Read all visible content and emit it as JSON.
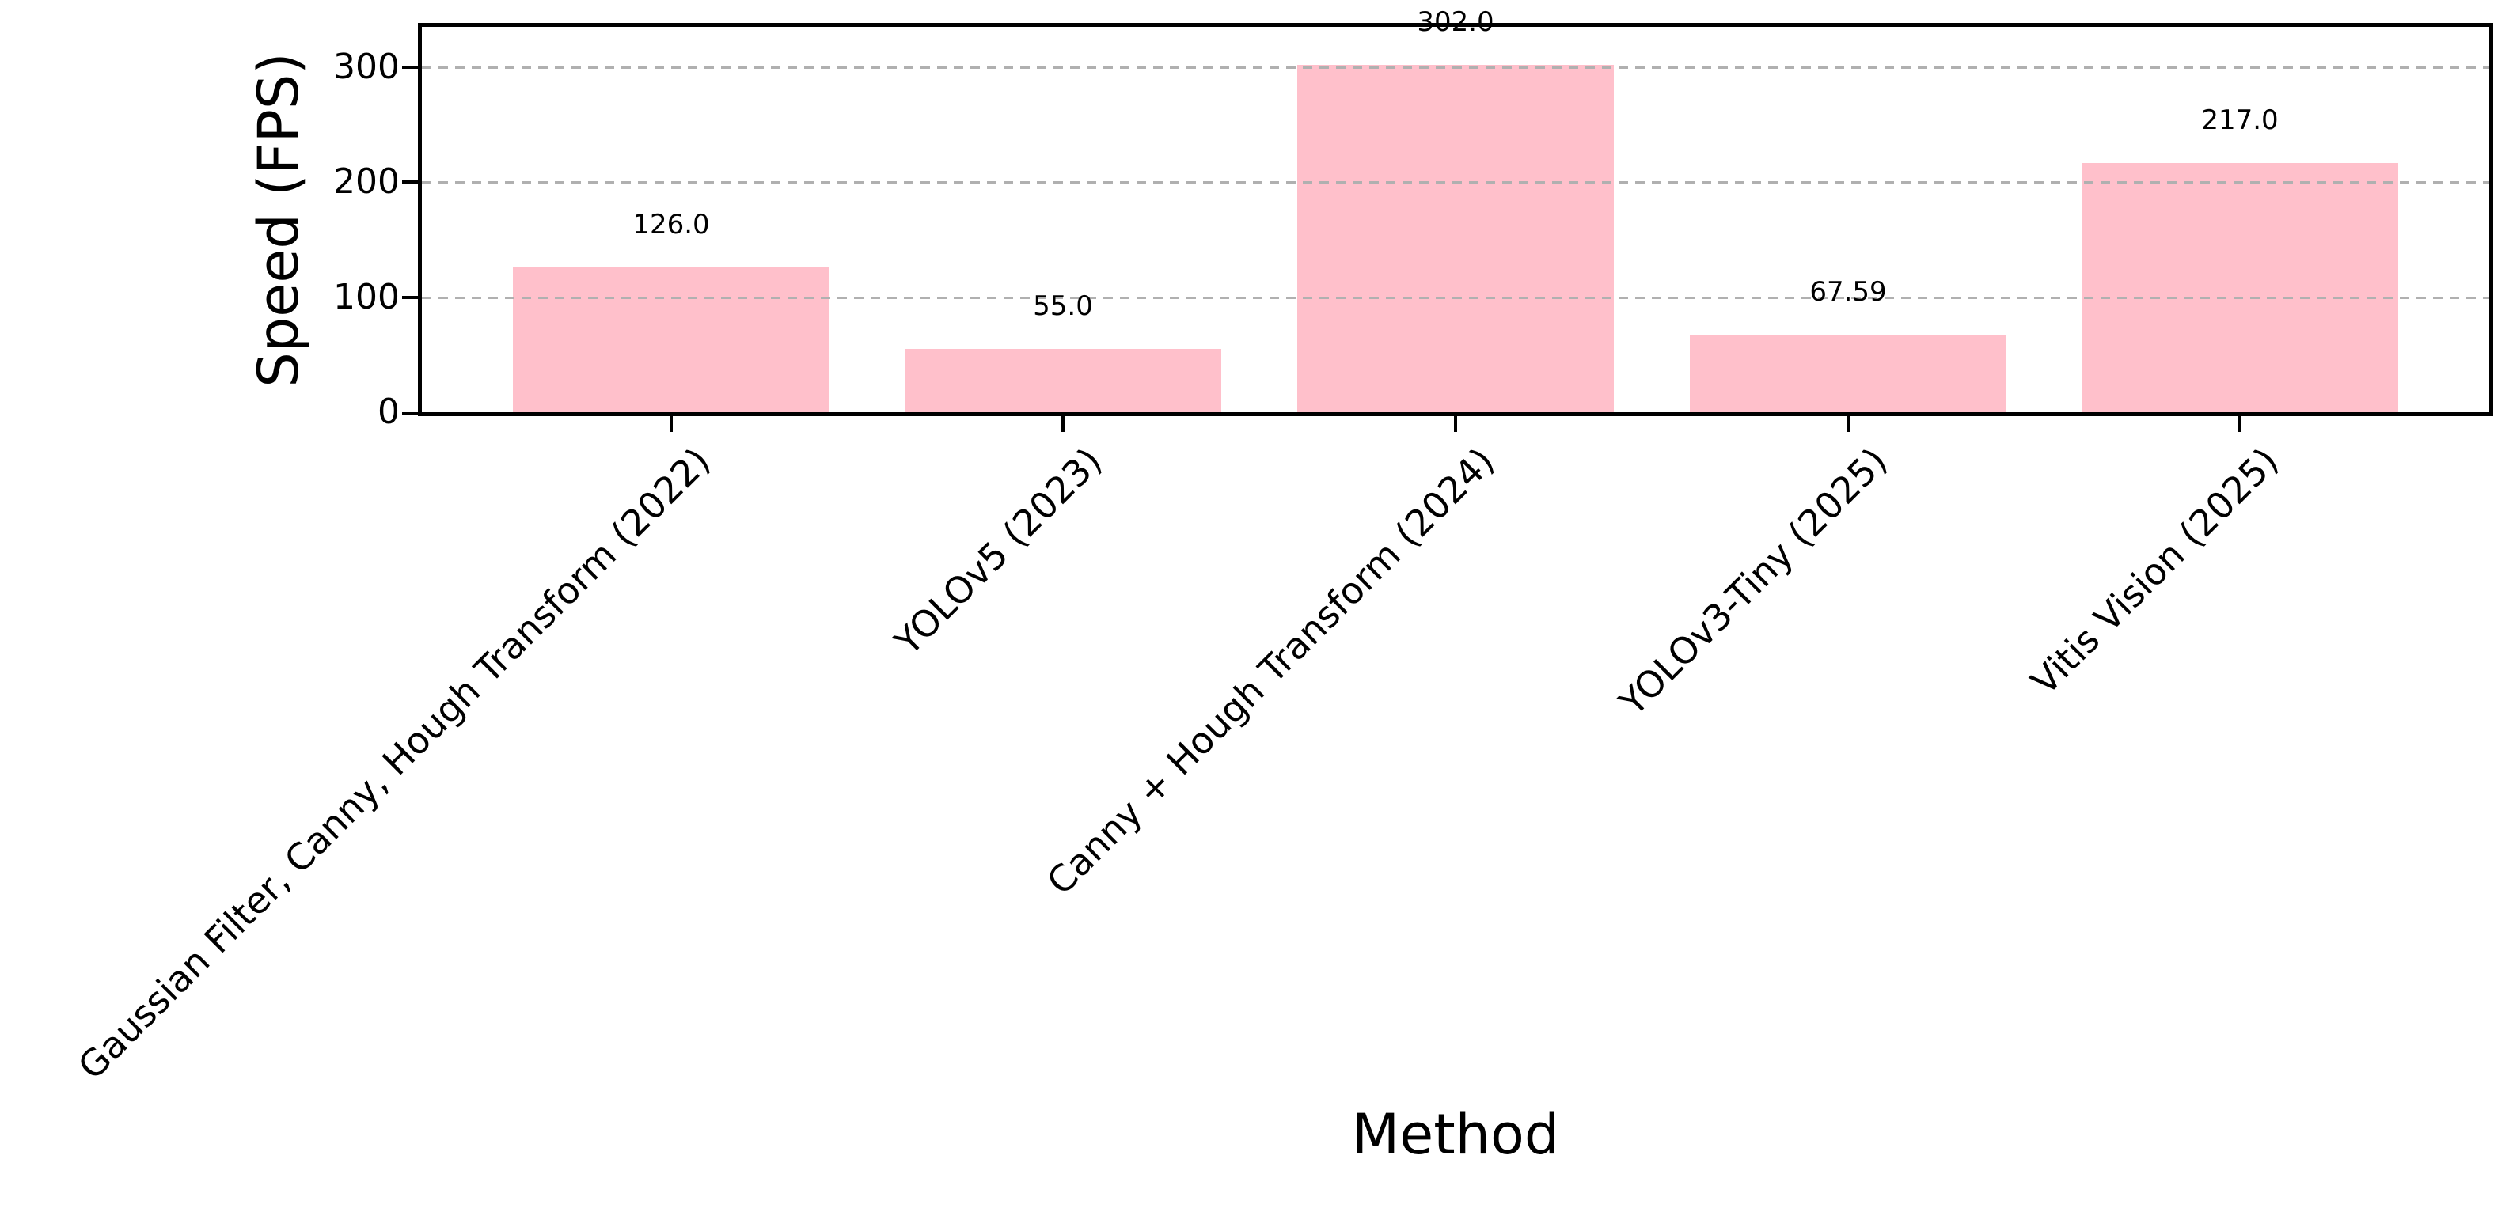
{
  "figure": {
    "background": "#ffffff"
  },
  "chart_data": {
    "type": "bar",
    "title": "",
    "xlabel": "Method",
    "ylabel": "Speed (FPS)",
    "categories": [
      "Gaussian Filter, Canny, Hough Transform (2022)",
      "YOLOv5 (2023)",
      "Canny + Hough Transform (2024)",
      "YOLOv3-Tiny (2025)",
      "Vitis Vision (2025)"
    ],
    "values": [
      126.0,
      55.0,
      302.0,
      67.59,
      217.0
    ],
    "value_labels": [
      "126.0",
      "55.0",
      "302.0",
      "67.59",
      "217.0"
    ],
    "yticks": [
      0,
      100,
      200,
      300
    ],
    "ylim": [
      0,
      335
    ],
    "bar_color": "#ffc0cb",
    "grid_color": "#b0b0b0",
    "axis_color": "#000000",
    "text_color": "#000000",
    "grid": "horizontal-dashed",
    "legend": "none",
    "xtick_label_rotation_deg": 45
  }
}
